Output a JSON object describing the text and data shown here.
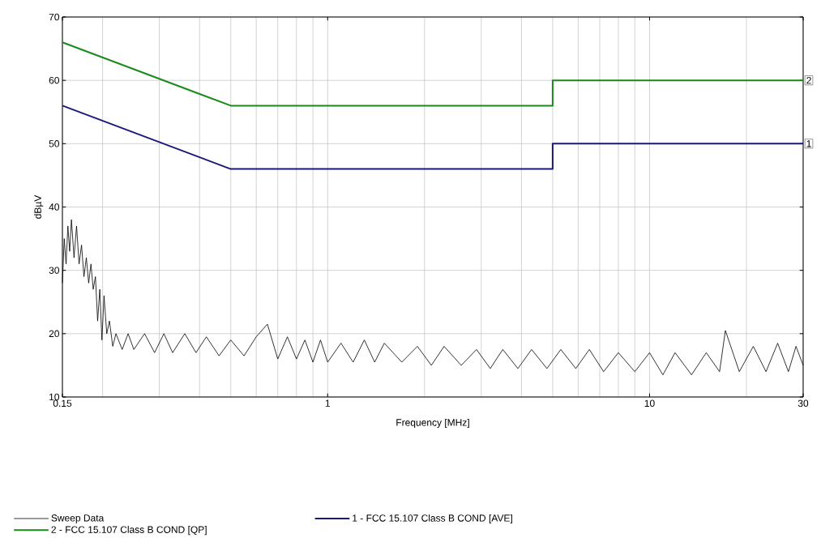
{
  "chart_data": {
    "type": "line",
    "xlabel": "Frequency [MHz]",
    "ylabel": "dBµV",
    "log": "x",
    "xlim": [
      0.15,
      30
    ],
    "ylim": [
      10,
      70
    ],
    "xticks": [
      0.15,
      {
        "value": 0.2,
        "label": null
      },
      {
        "value": 0.3,
        "label": null
      },
      {
        "value": 0.4,
        "label": null
      },
      {
        "value": 0.5,
        "label": null
      },
      {
        "value": 0.6,
        "label": null
      },
      {
        "value": 0.7,
        "label": null
      },
      {
        "value": 0.8,
        "label": null
      },
      {
        "value": 0.9,
        "label": null
      },
      1,
      {
        "value": 2,
        "label": null
      },
      {
        "value": 3,
        "label": null
      },
      {
        "value": 4,
        "label": null
      },
      {
        "value": 5,
        "label": null
      },
      {
        "value": 6,
        "label": null
      },
      {
        "value": 7,
        "label": null
      },
      {
        "value": 8,
        "label": null
      },
      {
        "value": 9,
        "label": null
      },
      10,
      {
        "value": 20,
        "label": null
      },
      30
    ],
    "yticks": [
      10,
      20,
      30,
      40,
      50,
      60,
      70
    ],
    "grid": true,
    "legend": "bottom",
    "marker": "none",
    "line_style": "solid",
    "annotations": [
      {
        "text": "2",
        "x": 30,
        "y": 60
      },
      {
        "text": "1",
        "x": 30,
        "y": 50
      }
    ],
    "series": [
      {
        "name": "Sweep Data",
        "color": "#000000",
        "x": [
          0.15,
          0.152,
          0.154,
          0.156,
          0.158,
          0.16,
          0.163,
          0.166,
          0.169,
          0.172,
          0.175,
          0.178,
          0.181,
          0.184,
          0.187,
          0.19,
          0.193,
          0.196,
          0.199,
          0.202,
          0.206,
          0.21,
          0.215,
          0.22,
          0.23,
          0.24,
          0.25,
          0.27,
          0.29,
          0.31,
          0.33,
          0.36,
          0.39,
          0.42,
          0.46,
          0.5,
          0.55,
          0.6,
          0.65,
          0.7,
          0.75,
          0.8,
          0.85,
          0.9,
          0.95,
          1.0,
          1.1,
          1.2,
          1.3,
          1.4,
          1.5,
          1.7,
          1.9,
          2.1,
          2.3,
          2.6,
          2.9,
          3.2,
          3.5,
          3.9,
          4.3,
          4.8,
          5.3,
          5.9,
          6.5,
          7.2,
          8,
          9,
          10,
          11,
          12,
          13.5,
          15,
          16.5,
          17.2,
          19,
          21,
          23,
          25,
          27,
          28.5,
          30
        ],
        "values": [
          28,
          35,
          31,
          37,
          33,
          38,
          32,
          37,
          31,
          34,
          29,
          32,
          28,
          31,
          27,
          29,
          22,
          27,
          19,
          26,
          20,
          22,
          18,
          20,
          17.5,
          20,
          17.5,
          20,
          17,
          20,
          17,
          20,
          17,
          19.5,
          16.5,
          19,
          16.5,
          19.5,
          21.5,
          16,
          19.5,
          16,
          19,
          15.5,
          19,
          15.5,
          18.5,
          15.5,
          19,
          15.5,
          18.5,
          15.5,
          18,
          15,
          18,
          15,
          17.5,
          14.5,
          17.5,
          14.5,
          17.5,
          14.5,
          17.5,
          14.5,
          17.5,
          14,
          17,
          14,
          17,
          13.5,
          17,
          13.5,
          17,
          14,
          20.5,
          14,
          18,
          14,
          18.5,
          14,
          18,
          15
        ]
      },
      {
        "name": "1 - FCC 15.107 Class B COND [AVE]",
        "color": "#1a1a7a",
        "x": [
          0.15,
          0.5,
          5,
          5,
          30
        ],
        "values": [
          56,
          46,
          46,
          50,
          50
        ]
      },
      {
        "name": "2 - FCC 15.107 Class B COND [QP]",
        "color": "#1a8a1a",
        "x": [
          0.15,
          0.5,
          5,
          5,
          30
        ],
        "values": [
          66,
          56,
          56,
          60,
          60
        ]
      }
    ]
  }
}
